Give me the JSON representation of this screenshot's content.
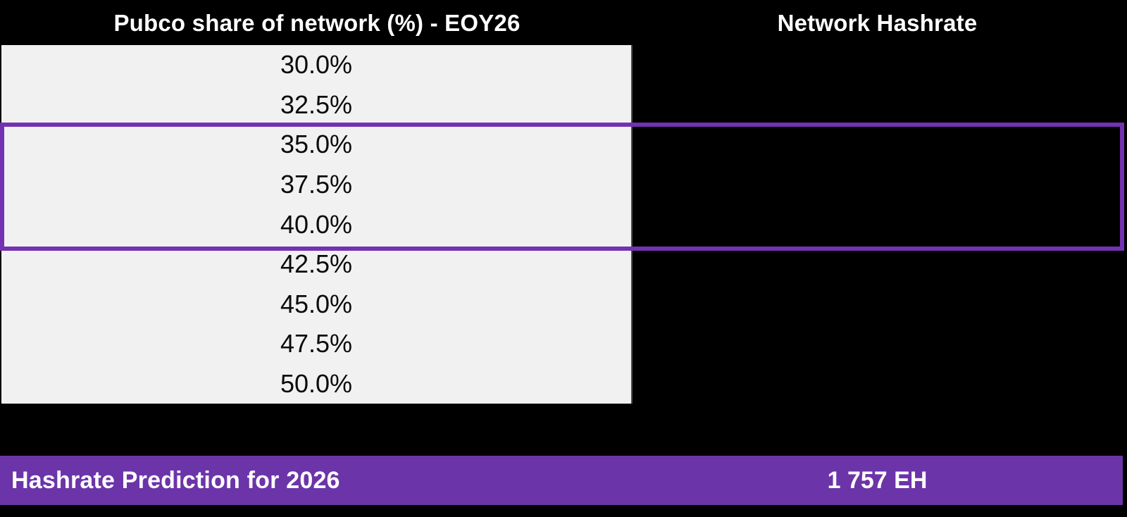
{
  "table": {
    "left_header": "Pubco share of network (%) - EOY26",
    "right_header": "Network Hashrate",
    "rows": [
      "30.0%",
      "32.5%",
      "35.0%",
      "37.5%",
      "40.0%",
      "42.5%",
      "45.0%",
      "47.5%",
      "50.0%"
    ],
    "selection": {
      "highlighted_rows": [
        "35.0%",
        "37.5%",
        "40.0%"
      ]
    }
  },
  "footer": {
    "label": "Hashrate Prediction for 2026",
    "value": "1 757 EH"
  },
  "colors": {
    "accent-purple": "#6c34a9",
    "accent-purple-border": "#7431b2",
    "panel-gray": "#f1f1f1",
    "background-black": "#000000"
  }
}
